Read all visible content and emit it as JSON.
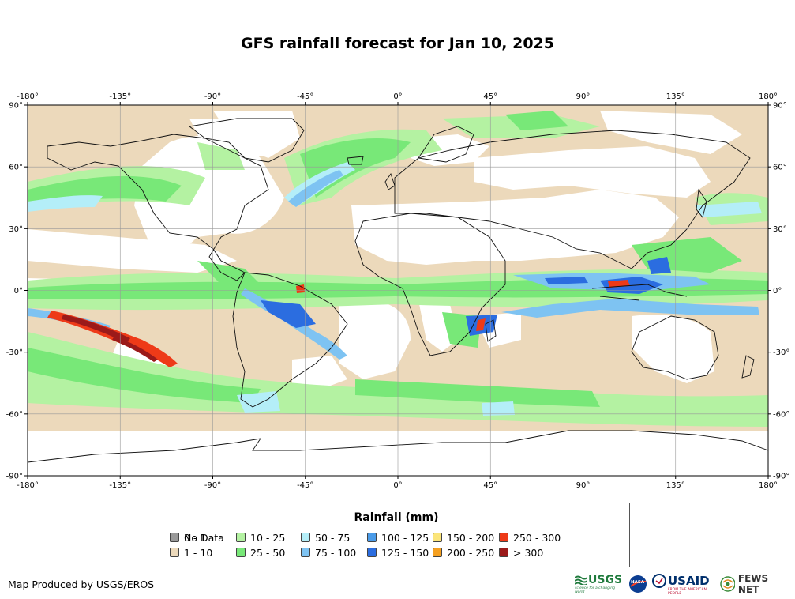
{
  "title": "GFS rainfall forecast for Jan 10, 2025",
  "map": {
    "lon_ticks": [
      "-180°",
      "-135°",
      "-90°",
      "-45°",
      "0°",
      "45°",
      "90°",
      "135°",
      "180°"
    ],
    "lat_ticks": [
      "90°",
      "60°",
      "30°",
      "0°",
      "-30°",
      "-60°",
      "-90°"
    ],
    "lon_values": [
      -180,
      -135,
      -90,
      -45,
      0,
      45,
      90,
      135,
      180
    ],
    "lat_values": [
      90,
      60,
      30,
      0,
      -30,
      -60,
      -90
    ]
  },
  "legend": {
    "title": "Rainfall (mm)",
    "items": [
      {
        "label": "0 - 1",
        "color": "#ffffff"
      },
      {
        "label": "1 - 10",
        "color": "#ecd9bb"
      },
      {
        "label": "10 - 25",
        "color": "#b4f2a2"
      },
      {
        "label": "25 - 50",
        "color": "#78e878"
      },
      {
        "label": "50 - 75",
        "color": "#b4eef8"
      },
      {
        "label": "75 - 100",
        "color": "#7ec3f2"
      },
      {
        "label": "100 - 125",
        "color": "#4a9be8"
      },
      {
        "label": "125 - 150",
        "color": "#2b6de0"
      },
      {
        "label": "150 - 200",
        "color": "#fbe57a"
      },
      {
        "label": "200 - 250",
        "color": "#f5a020"
      },
      {
        "label": "250 - 300",
        "color": "#ee3a18"
      },
      {
        "label": "> 300",
        "color": "#9b1a1a"
      },
      {
        "label": "No Data",
        "color": "#999999"
      }
    ]
  },
  "footer": {
    "credit": "Map Produced by USGS/EROS",
    "logos": {
      "usgs": "USGS",
      "usgs_tagline": "science for a changing world",
      "nasa": "NASA",
      "usaid": "USAID",
      "usaid_tagline": "FROM THE AMERICAN PEOPLE",
      "fews": "FEWS NET"
    }
  }
}
